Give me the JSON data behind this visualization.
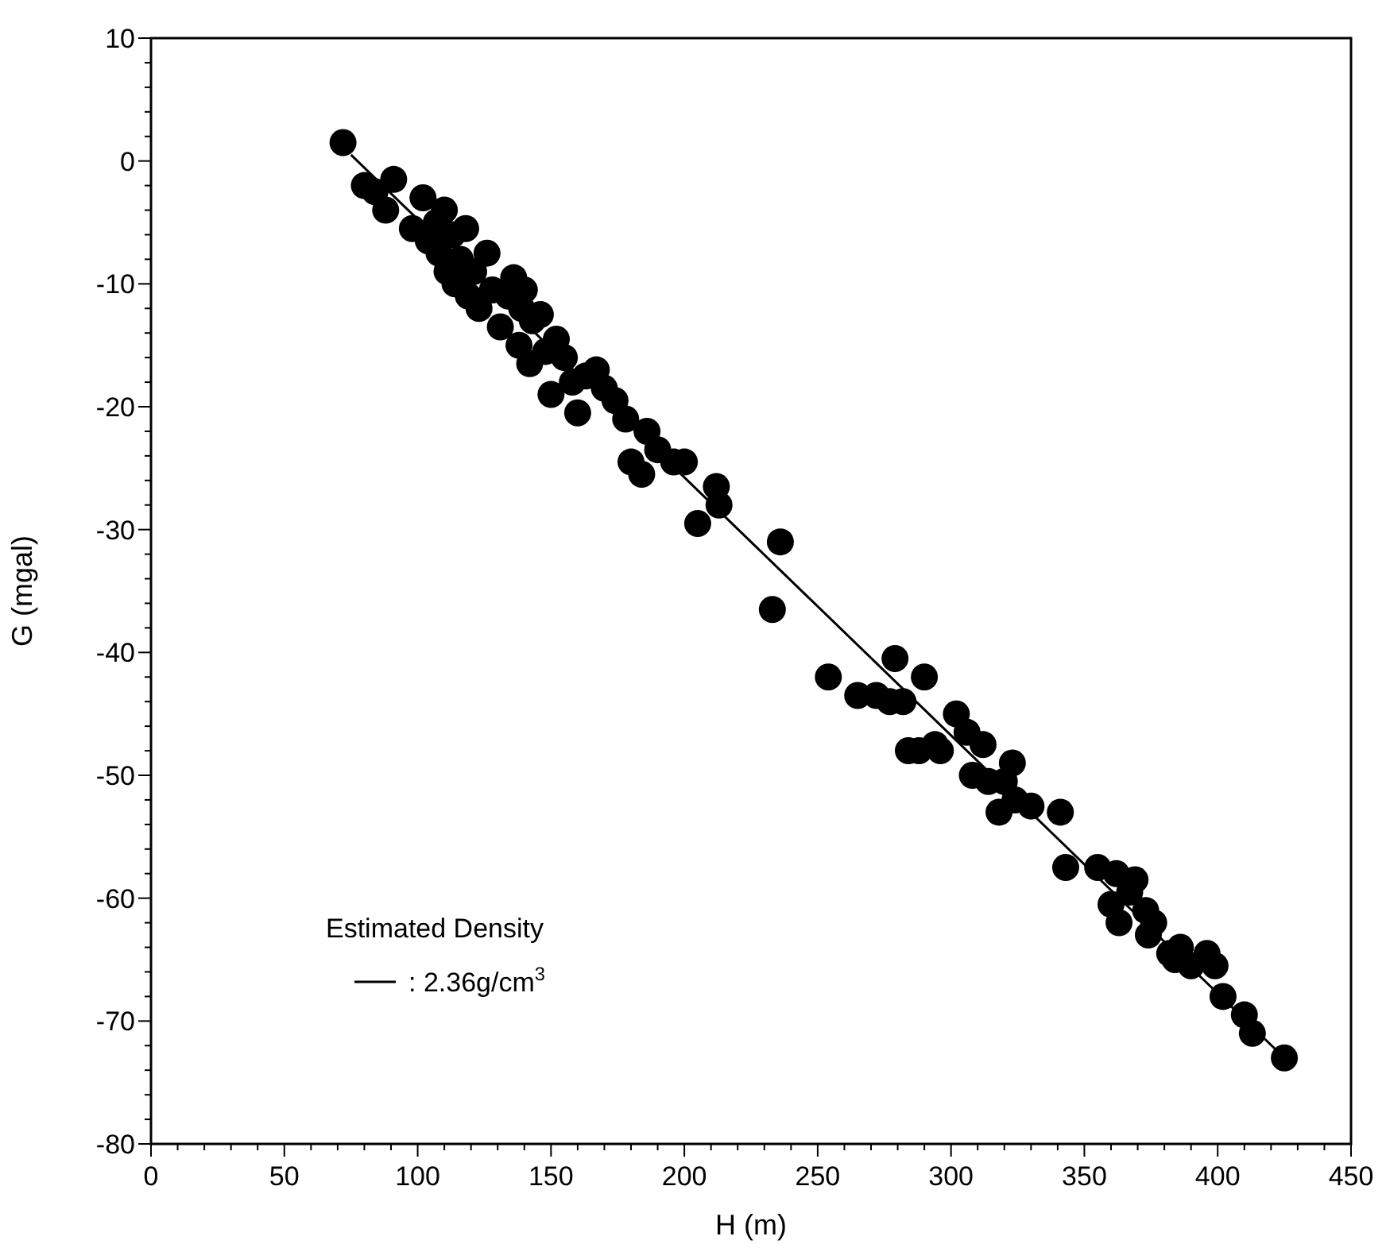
{
  "chart_data": {
    "type": "scatter",
    "xlabel": "H (m)",
    "ylabel": "G (mgal)",
    "legend_title": "Estimated Density",
    "legend": "bottom left",
    "grid": false,
    "xlim": [
      0,
      450
    ],
    "xticks": [
      0,
      50,
      100,
      150,
      200,
      250,
      300,
      350,
      400,
      450
    ],
    "ylim": [
      -80,
      10
    ],
    "yticks": [
      -80,
      -70,
      -60,
      -50,
      -40,
      -30,
      -20,
      -10,
      0,
      10
    ],
    "series": [
      {
        "marker": "circle",
        "color": "#000000",
        "x": [
          72,
          80,
          84,
          88,
          91,
          98,
          102,
          104,
          107,
          108,
          110,
          111,
          113,
          114,
          116,
          118,
          119,
          121,
          123,
          126,
          128,
          131,
          134,
          136,
          138,
          139,
          140,
          142,
          143,
          146,
          148,
          150,
          152,
          155,
          158,
          160,
          163,
          167,
          170,
          174,
          178,
          180,
          184,
          186,
          190,
          196,
          200,
          205,
          212,
          213,
          233,
          236,
          254,
          265,
          272,
          277,
          279,
          282,
          284,
          288,
          290,
          294,
          296,
          302,
          306,
          308,
          312,
          314,
          318,
          320,
          323,
          324,
          330,
          341,
          343,
          355,
          360,
          362,
          363,
          367,
          369,
          373,
          374,
          376,
          382,
          384,
          386,
          390,
          396,
          399,
          402,
          410,
          413,
          425
        ],
        "values": [
          1.5,
          -2,
          -2.5,
          -4,
          -1.5,
          -5.5,
          -3,
          -6.5,
          -5,
          -7.5,
          -4,
          -9,
          -6,
          -10,
          -8,
          -5.5,
          -11,
          -9,
          -12,
          -7.5,
          -10.5,
          -13.5,
          -11,
          -9.5,
          -15,
          -12,
          -10.5,
          -16.5,
          -13,
          -12.5,
          -15.5,
          -19,
          -14.5,
          -16,
          -18,
          -20.5,
          -17.5,
          -17,
          -18.5,
          -19.5,
          -21,
          -24.5,
          -25.5,
          -22,
          -23.5,
          -24.5,
          -24.5,
          -29.5,
          -26.5,
          -28,
          -36.5,
          -31,
          -42,
          -43.5,
          -43.5,
          -44,
          -40.5,
          -44,
          -48,
          -48,
          -42,
          -47.5,
          -48,
          -45,
          -46.5,
          -50,
          -47.5,
          -50.5,
          -53,
          -50.5,
          -49,
          -52,
          -52.5,
          -53,
          -57.5,
          -57.5,
          -60.5,
          -58,
          -62,
          -59.5,
          -58.5,
          -61,
          -63,
          -62,
          -64.5,
          -65,
          -64,
          -65.5,
          -64.5,
          -65.5,
          -68,
          -69.5,
          -71,
          -73
        ]
      },
      {
        "type": "line",
        "name": ": 2.36g/cm$^{3}$",
        "color": "#000000",
        "line_style": "solid",
        "x": [
          75,
          425
        ],
        "values": [
          0.5,
          -73
        ]
      }
    ]
  }
}
